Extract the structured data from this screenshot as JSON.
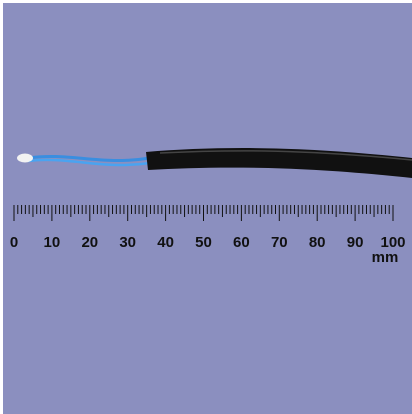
{
  "ruler": {
    "labels": [
      "0",
      "10",
      "20",
      "30",
      "40",
      "50",
      "60",
      "70",
      "80",
      "90",
      "100"
    ],
    "unit": "mm"
  }
}
